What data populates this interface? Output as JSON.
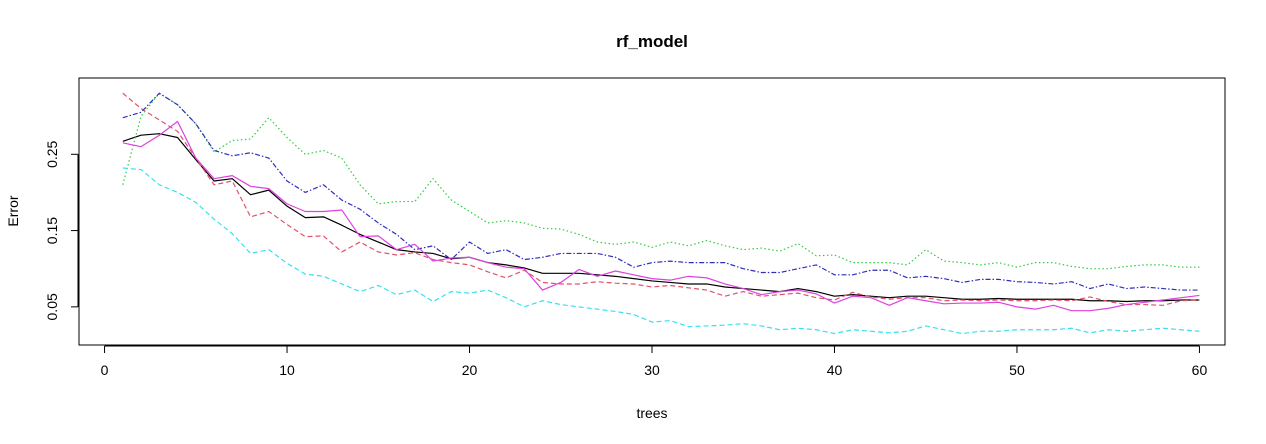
{
  "chart_data": {
    "type": "line",
    "title": "rf_model",
    "xlabel": "trees",
    "ylabel": "Error",
    "xlim": [
      -1.4,
      61.4
    ],
    "ylim": [
      0.0,
      0.35
    ],
    "xticks": [
      0,
      10,
      20,
      30,
      40,
      50,
      60
    ],
    "yticks": [
      0.05,
      0.15,
      0.25
    ],
    "ytick_labels": [
      "0.05",
      "0.15",
      "0.25"
    ],
    "grid": false,
    "legend": "none",
    "x": [
      1,
      2,
      3,
      4,
      5,
      6,
      7,
      8,
      9,
      10,
      11,
      12,
      13,
      14,
      15,
      16,
      17,
      18,
      19,
      20,
      21,
      22,
      23,
      24,
      25,
      26,
      27,
      28,
      29,
      30,
      31,
      32,
      33,
      34,
      35,
      36,
      37,
      38,
      39,
      40,
      41,
      42,
      43,
      44,
      45,
      46,
      47,
      48,
      49,
      50,
      51,
      52,
      53,
      54,
      55,
      56,
      57,
      58,
      59,
      60
    ],
    "series": [
      {
        "color": "#000000",
        "dash": "solid",
        "values": [
          0.267,
          0.275,
          0.277,
          0.272,
          0.243,
          0.215,
          0.218,
          0.197,
          0.203,
          0.182,
          0.167,
          0.168,
          0.157,
          0.145,
          0.135,
          0.125,
          0.122,
          0.12,
          0.113,
          0.115,
          0.108,
          0.105,
          0.101,
          0.094,
          0.094,
          0.094,
          0.092,
          0.09,
          0.087,
          0.084,
          0.082,
          0.08,
          0.08,
          0.076,
          0.074,
          0.072,
          0.07,
          0.074,
          0.07,
          0.064,
          0.066,
          0.064,
          0.062,
          0.064,
          0.064,
          0.062,
          0.06,
          0.06,
          0.061,
          0.06,
          0.06,
          0.06,
          0.06,
          0.058,
          0.058,
          0.057,
          0.058,
          0.058,
          0.059,
          0.059
        ]
      },
      {
        "color": "#df536b",
        "dash": "dashed",
        "values": [
          0.33,
          0.31,
          0.295,
          0.28,
          0.245,
          0.21,
          0.215,
          0.168,
          0.175,
          0.158,
          0.142,
          0.143,
          0.122,
          0.135,
          0.122,
          0.118,
          0.121,
          0.112,
          0.108,
          0.105,
          0.096,
          0.088,
          0.098,
          0.082,
          0.08,
          0.08,
          0.083,
          0.081,
          0.08,
          0.076,
          0.078,
          0.075,
          0.072,
          0.064,
          0.07,
          0.064,
          0.066,
          0.068,
          0.062,
          0.059,
          0.069,
          0.063,
          0.06,
          0.062,
          0.062,
          0.058,
          0.059,
          0.058,
          0.059,
          0.058,
          0.058,
          0.059,
          0.058,
          0.063,
          0.057,
          0.053,
          0.053,
          0.052,
          0.058,
          0.059
        ]
      },
      {
        "color": "#2ecc40",
        "dash": "dotted",
        "values": [
          0.21,
          0.3,
          0.33,
          0.315,
          0.29,
          0.253,
          0.268,
          0.27,
          0.298,
          0.272,
          0.25,
          0.255,
          0.245,
          0.21,
          0.185,
          0.188,
          0.188,
          0.218,
          0.19,
          0.175,
          0.16,
          0.163,
          0.16,
          0.153,
          0.152,
          0.145,
          0.135,
          0.132,
          0.135,
          0.128,
          0.135,
          0.13,
          0.137,
          0.13,
          0.125,
          0.127,
          0.123,
          0.133,
          0.117,
          0.118,
          0.108,
          0.108,
          0.108,
          0.105,
          0.125,
          0.11,
          0.108,
          0.105,
          0.108,
          0.102,
          0.108,
          0.108,
          0.103,
          0.1,
          0.1,
          0.103,
          0.105,
          0.105,
          0.102,
          0.102
        ]
      },
      {
        "color": "#2f2fbf",
        "dash": "dashdot",
        "values": [
          0.298,
          0.305,
          0.33,
          0.315,
          0.29,
          0.255,
          0.248,
          0.252,
          0.245,
          0.215,
          0.2,
          0.21,
          0.19,
          0.178,
          0.16,
          0.145,
          0.125,
          0.13,
          0.112,
          0.135,
          0.12,
          0.125,
          0.112,
          0.115,
          0.12,
          0.12,
          0.12,
          0.115,
          0.102,
          0.108,
          0.11,
          0.108,
          0.108,
          0.108,
          0.1,
          0.095,
          0.095,
          0.1,
          0.105,
          0.092,
          0.092,
          0.098,
          0.098,
          0.088,
          0.09,
          0.087,
          0.082,
          0.086,
          0.086,
          0.083,
          0.082,
          0.08,
          0.083,
          0.074,
          0.08,
          0.074,
          0.076,
          0.074,
          0.072,
          0.072
        ]
      },
      {
        "color": "#38e0f0",
        "dash": "dashed",
        "values": [
          0.232,
          0.23,
          0.21,
          0.2,
          0.187,
          0.165,
          0.146,
          0.12,
          0.125,
          0.107,
          0.093,
          0.09,
          0.08,
          0.07,
          0.078,
          0.066,
          0.072,
          0.057,
          0.07,
          0.068,
          0.072,
          0.062,
          0.05,
          0.058,
          0.053,
          0.05,
          0.047,
          0.044,
          0.04,
          0.03,
          0.032,
          0.024,
          0.025,
          0.026,
          0.028,
          0.025,
          0.02,
          0.022,
          0.02,
          0.015,
          0.02,
          0.018,
          0.016,
          0.018,
          0.025,
          0.02,
          0.015,
          0.018,
          0.018,
          0.02,
          0.02,
          0.02,
          0.022,
          0.016,
          0.02,
          0.018,
          0.02,
          0.022,
          0.02,
          0.018
        ]
      },
      {
        "color": "#df41df",
        "dash": "solid",
        "values": [
          0.265,
          0.26,
          0.275,
          0.293,
          0.245,
          0.218,
          0.222,
          0.208,
          0.205,
          0.185,
          0.175,
          0.175,
          0.177,
          0.142,
          0.143,
          0.125,
          0.132,
          0.11,
          0.114,
          0.115,
          0.108,
          0.102,
          0.1,
          0.072,
          0.082,
          0.099,
          0.09,
          0.097,
          0.092,
          0.087,
          0.085,
          0.09,
          0.088,
          0.08,
          0.074,
          0.066,
          0.07,
          0.072,
          0.067,
          0.055,
          0.064,
          0.062,
          0.052,
          0.062,
          0.058,
          0.054,
          0.055,
          0.055,
          0.056,
          0.05,
          0.047,
          0.052,
          0.045,
          0.045,
          0.048,
          0.053,
          0.056,
          0.059,
          0.062,
          0.065
        ]
      }
    ]
  }
}
